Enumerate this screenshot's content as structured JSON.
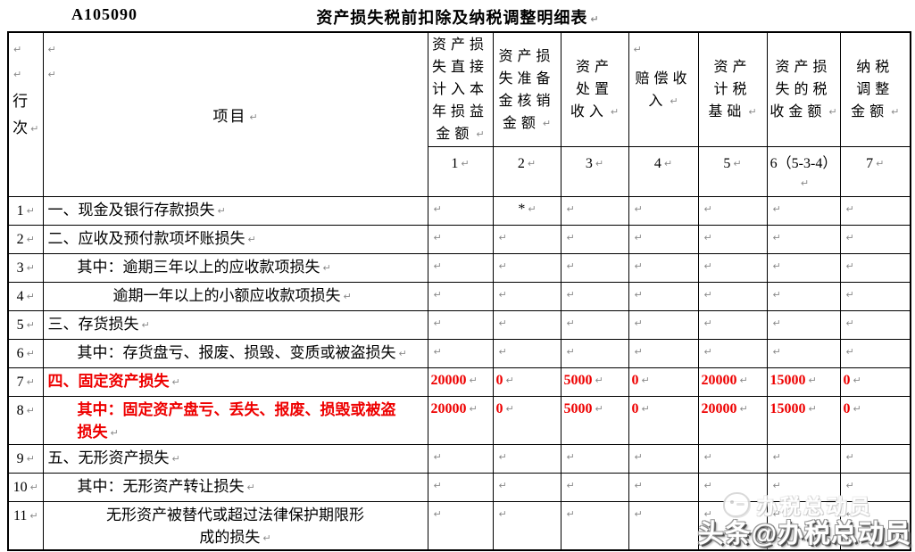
{
  "page": {
    "form_code": "A105090",
    "title": "资产损失税前扣除及纳税调整明细表"
  },
  "table": {
    "row_header": "行\n次",
    "item_header": "项目",
    "columns": [
      "资产损\n失直接\n计入本\n年损益\n金额",
      "资产损\n失准备\n金核销\n金额",
      "资产\n处置\n收入",
      "赔偿收\n入",
      "资产\n计税\n基础",
      "资产损\n失的税\n收金额",
      "纳税\n调整\n金额"
    ],
    "column_numbers": [
      "1",
      "2",
      "3",
      "4",
      "5",
      "6（5-3-4）",
      "7"
    ],
    "rows": [
      {
        "num": "1",
        "label": "一、现金及银行存款损失",
        "style": "l0",
        "red": false,
        "values": [
          "",
          "*",
          "",
          "",
          "",
          "",
          ""
        ]
      },
      {
        "num": "2",
        "label": "二、应收及预付款项坏账损失",
        "style": "l0",
        "red": false,
        "values": [
          "",
          "",
          "",
          "",
          "",
          "",
          ""
        ]
      },
      {
        "num": "3",
        "label": "其中：逾期三年以上的应收款项损失",
        "style": "l1",
        "red": false,
        "values": [
          "",
          "",
          "",
          "",
          "",
          "",
          ""
        ]
      },
      {
        "num": "4",
        "label": "逾期一年以上的小额应收款项损失",
        "style": "l2",
        "red": false,
        "values": [
          "",
          "",
          "",
          "",
          "",
          "",
          ""
        ]
      },
      {
        "num": "5",
        "label": "三、存货损失",
        "style": "l0",
        "red": false,
        "values": [
          "",
          "",
          "",
          "",
          "",
          "",
          ""
        ]
      },
      {
        "num": "6",
        "label": "其中：存货盘亏、报废、损毁、变质或被盗损失",
        "style": "l1",
        "red": false,
        "values": [
          "",
          "",
          "",
          "",
          "",
          "",
          ""
        ]
      },
      {
        "num": "7",
        "label": "四、固定资产损失",
        "style": "l0",
        "red": true,
        "values": [
          "20000",
          "0",
          "5000",
          "0",
          "20000",
          "15000",
          "0"
        ]
      },
      {
        "num": "8",
        "label": "其中：固定资产盘亏、丢失、报废、损毁或被盗\n损失",
        "style": "l1",
        "red": true,
        "values": [
          "20000",
          "0",
          "5000",
          "0",
          "20000",
          "15000",
          "0"
        ]
      },
      {
        "num": "9",
        "label": "五、无形资产损失",
        "style": "l0",
        "red": false,
        "values": [
          "",
          "",
          "",
          "",
          "",
          "",
          ""
        ]
      },
      {
        "num": "10",
        "label": "其中：无形资产转让损失",
        "style": "l1",
        "red": false,
        "values": [
          "",
          "",
          "",
          "",
          "",
          "",
          ""
        ]
      },
      {
        "num": "11",
        "label": "无形资产被替代或超过法律保护期限形\n成的损失",
        "style": "ctr",
        "red": false,
        "values": [
          "",
          "",
          "",
          "",
          "",
          "",
          ""
        ]
      }
    ]
  },
  "watermark": {
    "badge_text": "办税总动员",
    "main_text": "头条@办税总动员"
  },
  "marks": {
    "pilcrow": "↵"
  }
}
